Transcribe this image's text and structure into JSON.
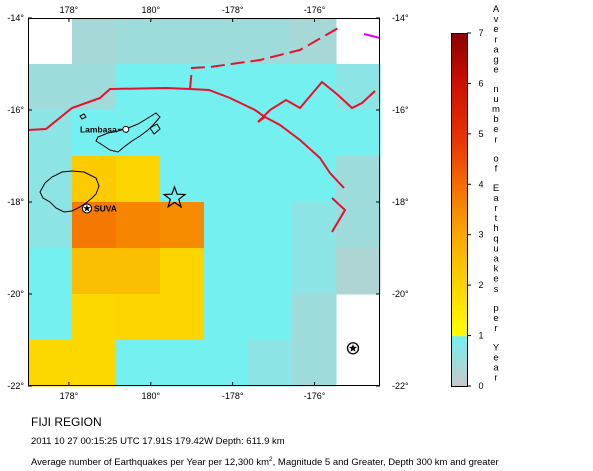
{
  "map": {
    "lon_ticks": [
      "178°",
      "180°",
      "-178°",
      "-176°"
    ],
    "lat_ticks": [
      "-14°",
      "-16°",
      "-18°",
      "-20°",
      "-22°"
    ],
    "extent": {
      "lon_min": 177.0,
      "lon_max": 185.6,
      "lat_min": -22.0,
      "lat_max": -14.0
    },
    "grid": {
      "rows": 8,
      "cols": 8,
      "comment_levels": "values are earthquakes per year, row 0 = northernmost",
      "values": [
        [
          null,
          0.4,
          0.5,
          0.5,
          0.5,
          0.5,
          0.4,
          null
        ],
        [
          0.5,
          0.5,
          1.0,
          1.0,
          1.0,
          1.0,
          1.0,
          0.7
        ],
        [
          0.7,
          1.0,
          1.0,
          1.0,
          1.0,
          1.0,
          1.0,
          1.0
        ],
        [
          0.7,
          2.2,
          2.0,
          1.0,
          1.0,
          1.0,
          1.0,
          0.5
        ],
        [
          0.7,
          3.8,
          3.6,
          3.5,
          1.0,
          1.0,
          0.7,
          0.5
        ],
        [
          1.0,
          2.5,
          2.5,
          2.0,
          1.0,
          1.0,
          0.7,
          0.3
        ],
        [
          1.0,
          1.9,
          2.0,
          2.0,
          1.0,
          1.0,
          0.5,
          null
        ],
        [
          1.9,
          1.9,
          1.0,
          1.0,
          1.0,
          0.7,
          0.5,
          null
        ]
      ]
    },
    "cities": [
      {
        "name": "Lambasa",
        "lon": 179.39,
        "lat": -16.42
      },
      {
        "name": "SUVA",
        "lon": 178.44,
        "lat": -18.14
      }
    ],
    "epicenter": {
      "lon": 180.58,
      "lat": -17.91
    },
    "volcano": {
      "lon": 184.94,
      "lat": -21.18
    }
  },
  "legend": {
    "title": "Average number of Earthquakes per Year",
    "min": 0,
    "max": 7,
    "ticks": [
      "0",
      "1",
      "2",
      "3",
      "4",
      "5",
      "6",
      "7"
    ],
    "stops": [
      {
        "value": 0,
        "color": "#c8c8c8"
      },
      {
        "value": 1,
        "color": "#74f0f0"
      },
      {
        "value": 1.01,
        "color": "#ffff00"
      },
      {
        "value": 3,
        "color": "#f9a800"
      },
      {
        "value": 4,
        "color": "#f46d00"
      },
      {
        "value": 5,
        "color": "#e53000"
      },
      {
        "value": 6,
        "color": "#cc1000"
      },
      {
        "value": 7,
        "color": "#8a0000"
      }
    ]
  },
  "text": {
    "region": "FIJI REGION",
    "event": "2011 10 27 00:15:25 UTC 17.91S 179.42W Depth: 611.9 km",
    "caption_prefix": "Average number of Earthquakes per Year per 12,300 km",
    "caption_sup": "2",
    "caption_suffix": ", Magnitude 5 and Greater, Depth 300 km and greater"
  },
  "colors": {
    "plate_boundary": "#e8102a",
    "coastline": "#000000"
  }
}
